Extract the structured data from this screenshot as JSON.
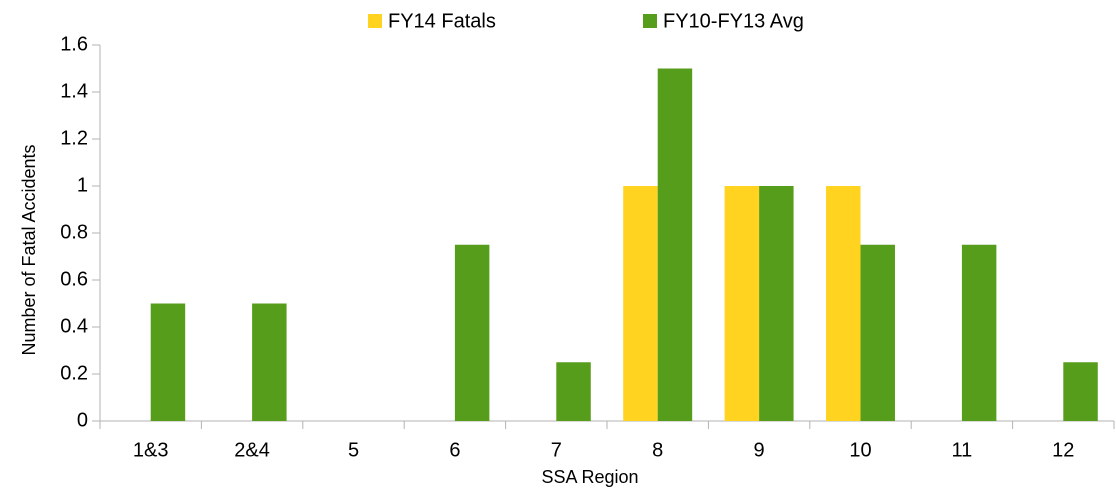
{
  "chart_data": {
    "type": "bar",
    "categories": [
      "1&3",
      "2&4",
      "5",
      "6",
      "7",
      "8",
      "9",
      "10",
      "11",
      "12"
    ],
    "series": [
      {
        "name": "FY14 Fatals",
        "color": "#ffd320",
        "values": [
          0,
          0,
          0,
          0,
          0,
          1,
          1,
          1,
          0,
          0
        ]
      },
      {
        "name": "FY10-FY13 Avg",
        "color": "#579d1c",
        "values": [
          0.5,
          0.5,
          0,
          0.75,
          0.25,
          1.5,
          1,
          0.75,
          0.75,
          0.25
        ]
      }
    ],
    "ylim": [
      0,
      1.6
    ],
    "yticks": [
      0,
      0.2,
      0.4,
      0.6,
      0.8,
      1,
      1.2,
      1.4,
      1.6
    ],
    "y_label": "Number of Fatal Accidents",
    "x_label": "SSA Region",
    "legend": "top",
    "grid": false
  }
}
